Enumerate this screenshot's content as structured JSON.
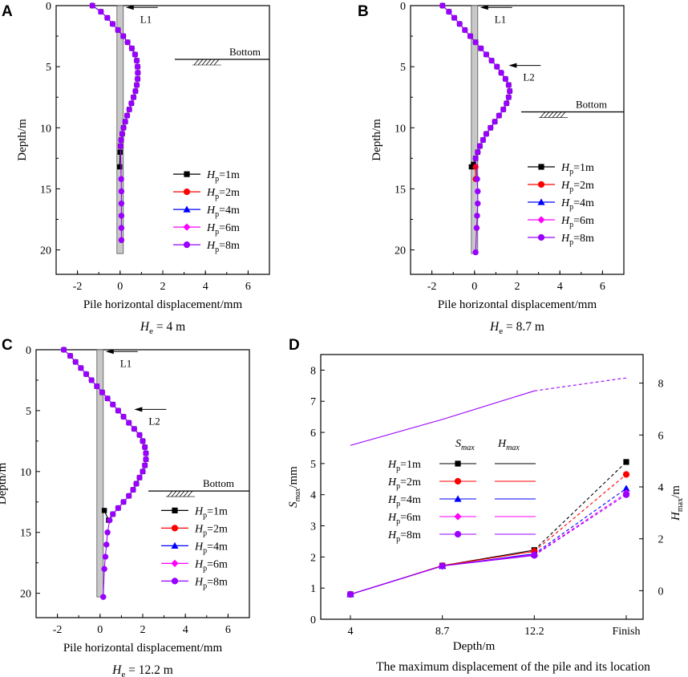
{
  "chart_data": [
    {
      "id": "A",
      "type": "line",
      "panel_label": "A",
      "xlabel": "Pile horizontal displacement/mm",
      "ylabel": "Depth/m",
      "xlim": [
        -3,
        7
      ],
      "ylim": [
        0,
        22
      ],
      "y_inverted": true,
      "xticks": [
        "-2",
        "0",
        "2",
        "4",
        "6"
      ],
      "yticks": [
        "0",
        "5",
        "10",
        "15",
        "20"
      ],
      "caption_main": "H",
      "caption_sub": "e",
      "caption_rest": " = 4 m",
      "pile": {
        "x_from": -0.15,
        "x_to": 0.15,
        "depth": 20.3
      },
      "annotations": [
        {
          "text": "L1",
          "depth": 0.15
        }
      ],
      "bottom_label": "Bottom",
      "bottom_depth": 4.4,
      "legend": [
        "Hp=1m",
        "Hp=2m",
        "Hp=4m",
        "Hp=6m",
        "Hp=8m"
      ],
      "series": [
        {
          "name": "Hp=1m",
          "x": [
            -1.3,
            -0.9,
            -0.6,
            -0.35,
            -0.1,
            0.15,
            0.35,
            0.55,
            0.7,
            0.78,
            0.82,
            0.83,
            0.82,
            0.78,
            0.72,
            0.63,
            0.53,
            0.43,
            0.33,
            0.24,
            0.16,
            0.1,
            0.05,
            0.02,
            0.0,
            -0.02
          ],
          "y": [
            0,
            0.5,
            1,
            1.5,
            2,
            2.5,
            3,
            3.5,
            4,
            4.5,
            5,
            5.5,
            6,
            6.5,
            7,
            7.5,
            8,
            8.5,
            9,
            9.5,
            10,
            10.5,
            11,
            11.5,
            12,
            13.2
          ]
        },
        {
          "name": "Hp=2m",
          "x": [],
          "y": []
        },
        {
          "name": "Hp=4m",
          "x": [],
          "y": []
        },
        {
          "name": "Hp=6m",
          "x": [],
          "y": []
        },
        {
          "name": "Hp=8m",
          "x": [
            -1.3,
            -0.9,
            -0.6,
            -0.35,
            -0.1,
            0.15,
            0.35,
            0.55,
            0.7,
            0.78,
            0.82,
            0.83,
            0.82,
            0.78,
            0.72,
            0.63,
            0.53,
            0.43,
            0.33,
            0.24,
            0.16,
            0.1,
            0.05,
            0.02,
            0.05,
            0.06,
            0.06,
            0.06,
            0.06,
            0.06
          ],
          "y": [
            0,
            0.5,
            1,
            1.5,
            2,
            2.5,
            3,
            3.5,
            4,
            4.5,
            5,
            5.5,
            6,
            6.5,
            7,
            7.5,
            8,
            8.5,
            9,
            9.5,
            10,
            10.5,
            11,
            11.5,
            14.2,
            15.2,
            16.2,
            17.2,
            18.2,
            19.2
          ]
        }
      ]
    },
    {
      "id": "B",
      "type": "line",
      "panel_label": "B",
      "xlabel": "Pile horizontal displacement/mm",
      "ylabel": "Depth/m",
      "xlim": [
        -3,
        7
      ],
      "ylim": [
        0,
        22
      ],
      "y_inverted": true,
      "xticks": [
        "-2",
        "0",
        "2",
        "4",
        "6"
      ],
      "yticks": [
        "0",
        "5",
        "10",
        "15",
        "20"
      ],
      "caption_main": "H",
      "caption_sub": "e",
      "caption_rest": " = 8.7 m",
      "pile": {
        "x_from": -0.15,
        "x_to": 0.15,
        "depth": 20.3
      },
      "annotations": [
        {
          "text": "L1",
          "depth": 0.15
        },
        {
          "text": "L2",
          "depth": 4.9
        }
      ],
      "bottom_label": "Bottom",
      "bottom_depth": 8.7,
      "legend": [
        "Hp=1m",
        "Hp=2m",
        "Hp=4m",
        "Hp=6m",
        "Hp=8m"
      ],
      "series": [
        {
          "name": "Hp=1m",
          "x": [
            -1.5,
            -1.2,
            -0.95,
            -0.7,
            -0.45,
            -0.2,
            0.05,
            0.3,
            0.55,
            0.8,
            1.05,
            1.25,
            1.45,
            1.6,
            1.65,
            1.6,
            1.5,
            1.35,
            1.15,
            0.95,
            0.75,
            0.55,
            0.4,
            0.25,
            0.15,
            0.05,
            -0.05,
            -0.15
          ],
          "y": [
            0,
            0.5,
            1,
            1.5,
            2,
            2.5,
            3,
            3.5,
            4,
            4.5,
            5,
            5.5,
            6,
            6.5,
            7,
            7.5,
            8,
            8.5,
            9,
            9.5,
            10,
            10.5,
            11,
            11.5,
            12,
            12.5,
            13,
            13.2
          ]
        },
        {
          "name": "Hp=2m",
          "x": [
            0.05,
            0.05
          ],
          "y": [
            13.2,
            14.2
          ]
        },
        {
          "name": "Hp=4m",
          "x": [],
          "y": []
        },
        {
          "name": "Hp=6m",
          "x": [],
          "y": []
        },
        {
          "name": "Hp=8m",
          "x": [
            -1.5,
            -1.2,
            -0.95,
            -0.7,
            -0.45,
            -0.2,
            0.05,
            0.3,
            0.55,
            0.8,
            1.05,
            1.25,
            1.45,
            1.6,
            1.65,
            1.6,
            1.5,
            1.35,
            1.15,
            0.95,
            0.75,
            0.55,
            0.4,
            0.25,
            0.15,
            0.05,
            0.12,
            0.15,
            0.15,
            0.12,
            0.1,
            0.05
          ],
          "y": [
            0,
            0.5,
            1,
            1.5,
            2,
            2.5,
            3,
            3.5,
            4,
            4.5,
            5,
            5.5,
            6,
            6.5,
            7,
            7.5,
            8,
            8.5,
            9,
            9.5,
            10,
            10.5,
            11,
            11.5,
            12,
            12.5,
            14.2,
            15.2,
            16.2,
            17.2,
            18.2,
            20.2
          ]
        }
      ]
    },
    {
      "id": "C",
      "type": "line",
      "panel_label": "C",
      "xlabel": "Pile horizontal displacement/mm",
      "ylabel": "Depth/m",
      "xlim": [
        -3,
        7
      ],
      "ylim": [
        0,
        22
      ],
      "y_inverted": true,
      "xticks": [
        "-2",
        "0",
        "2",
        "4",
        "6"
      ],
      "yticks": [
        "0",
        "5",
        "10",
        "15",
        "20"
      ],
      "caption_main": "H",
      "caption_sub": "e",
      "caption_rest": " = 12.2 m",
      "pile": {
        "x_from": -0.15,
        "x_to": 0.15,
        "depth": 20.3
      },
      "annotations": [
        {
          "text": "L1",
          "depth": 0.15
        },
        {
          "text": "L2",
          "depth": 4.9
        }
      ],
      "bottom_label": "Bottom",
      "bottom_depth": 11.6,
      "legend": [
        "Hp=1m",
        "Hp=2m",
        "Hp=4m",
        "Hp=6m",
        "Hp=8m"
      ],
      "series": [
        {
          "name": "Hp=1m",
          "x": [
            -1.7,
            -1.4,
            -1.15,
            -0.9,
            -0.65,
            -0.4,
            -0.15,
            0.1,
            0.35,
            0.6,
            0.85,
            1.1,
            1.35,
            1.6,
            1.85,
            2.0,
            2.1,
            2.15,
            2.15,
            2.1,
            2.0,
            1.85,
            1.7,
            1.55,
            1.35,
            1.1,
            0.85,
            0.6,
            0.4,
            0.2
          ],
          "y": [
            0,
            0.5,
            1,
            1.5,
            2,
            2.5,
            3,
            3.5,
            4,
            4.5,
            5,
            5.5,
            6,
            6.5,
            7,
            7.5,
            8,
            8.5,
            9,
            9.5,
            10,
            10.5,
            11,
            11.5,
            12,
            12.5,
            13,
            13.5,
            14,
            13.2
          ]
        },
        {
          "name": "Hp=2m",
          "x": [],
          "y": []
        },
        {
          "name": "Hp=4m",
          "x": [],
          "y": []
        },
        {
          "name": "Hp=6m",
          "x": [],
          "y": []
        },
        {
          "name": "Hp=8m",
          "x": [
            -1.7,
            -1.4,
            -1.15,
            -0.9,
            -0.65,
            -0.4,
            -0.15,
            0.1,
            0.35,
            0.6,
            0.85,
            1.1,
            1.35,
            1.6,
            1.85,
            2.0,
            2.1,
            2.15,
            2.15,
            2.1,
            2.0,
            1.85,
            1.7,
            1.55,
            1.35,
            1.1,
            0.85,
            0.6,
            0.45,
            0.35,
            0.3,
            0.25,
            0.2,
            0.15
          ],
          "y": [
            0,
            0.5,
            1,
            1.5,
            2,
            2.5,
            3,
            3.5,
            4,
            4.5,
            5,
            5.5,
            6,
            6.5,
            7,
            7.5,
            8,
            8.5,
            9,
            9.5,
            10,
            10.5,
            11,
            11.5,
            12,
            12.5,
            13,
            13.5,
            14,
            15,
            16,
            17,
            18,
            20.3
          ]
        }
      ]
    },
    {
      "id": "D",
      "type": "line",
      "panel_label": "D",
      "title": "The maximum displacement of the pile and its location",
      "xlabel": "Depth/m",
      "ylabel_left_main": "S",
      "ylabel_left_sub": "max",
      "ylabel_left_unit": "/mm",
      "ylabel_right_main": "H",
      "ylabel_right_sub": "max",
      "ylabel_right_unit": "/m",
      "categories": [
        "4",
        "8.7",
        "12.2",
        "Finish"
      ],
      "ylim_left": [
        0,
        8.5
      ],
      "ylim_right": [
        -1.1,
        9.1
      ],
      "yticks_left": [
        "0",
        "1",
        "2",
        "3",
        "4",
        "5",
        "6",
        "7",
        "8"
      ],
      "yticks_right": [
        "0",
        "2",
        "4",
        "6",
        "8"
      ],
      "legend_header_s": "Smax",
      "legend_header_h": "Hmax",
      "legend": [
        "Hp=1m",
        "Hp=2m",
        "Hp=4m",
        "Hp=6m",
        "Hp=8m"
      ],
      "series_smax": [
        {
          "name": "Hp=1m",
          "values": [
            0.8,
            1.72,
            2.22,
            5.05
          ]
        },
        {
          "name": "Hp=2m",
          "values": [
            0.8,
            1.72,
            2.18,
            4.65
          ]
        },
        {
          "name": "Hp=4m",
          "values": [
            0.8,
            1.71,
            2.1,
            4.2
          ]
        },
        {
          "name": "Hp=6m",
          "values": [
            0.8,
            1.71,
            2.07,
            4.05
          ]
        },
        {
          "name": "Hp=8m",
          "values": [
            0.8,
            1.71,
            2.05,
            4.0
          ]
        }
      ],
      "series_hmax": [
        {
          "name": "Hp=8m",
          "values": [
            5.6,
            6.6,
            7.7,
            8.2
          ]
        }
      ]
    }
  ],
  "colors": {
    "Hp=1m": "#000000",
    "Hp=2m": "#ff0000",
    "Hp=4m": "#0000ff",
    "Hp=6m": "#ff00ff",
    "Hp=8m": "#9900ff"
  },
  "markers": {
    "Hp=1m": "square",
    "Hp=2m": "circle",
    "Hp=4m": "triangle",
    "Hp=6m": "diamond",
    "Hp=8m": "circle"
  }
}
